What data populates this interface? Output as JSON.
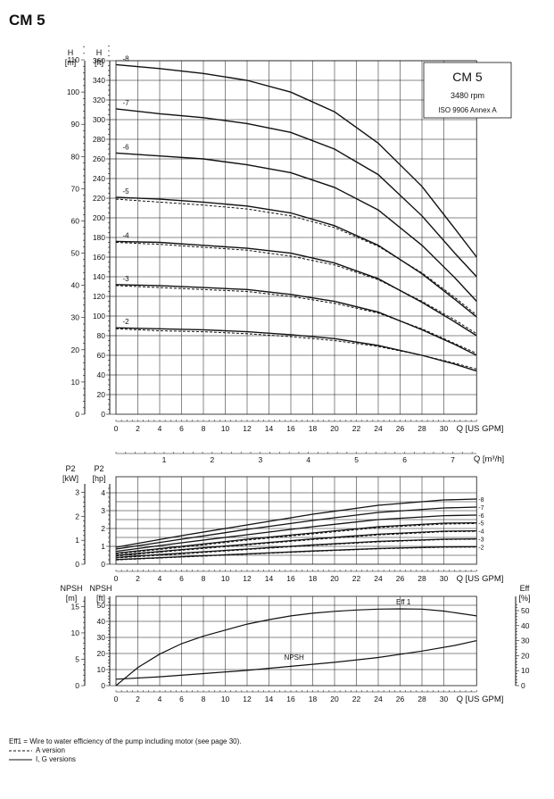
{
  "title": "CM 5",
  "info_box": {
    "model": "CM 5",
    "speed": "3480 rpm",
    "standard": "ISO 9906 Annex A"
  },
  "footnotes": {
    "eff_note": "Eff1 = Wire to water efficiency of the pump including motor (see page 30).",
    "a_version": "A version",
    "ig_versions": "I, G versions"
  },
  "chart_data": [
    {
      "id": "head",
      "type": "line",
      "title": "CM 5 head curves",
      "xlabel": "Q [US GPM]",
      "xlabel2": "Q [m³/h]",
      "ylabel_left": "H\n[m]",
      "ylabel_right": "H\n[ft]",
      "xlim": [
        0,
        33
      ],
      "ylim": [
        0,
        380
      ],
      "x_ticks": [
        0,
        2,
        4,
        6,
        8,
        10,
        12,
        14,
        16,
        18,
        20,
        22,
        24,
        26,
        28,
        30
      ],
      "y_ticks_ft": [
        0,
        20,
        40,
        60,
        80,
        100,
        120,
        140,
        160,
        180,
        200,
        220,
        240,
        260,
        280,
        300,
        320,
        340,
        360
      ],
      "y_ticks_m": [
        0,
        10,
        20,
        30,
        40,
        50,
        60,
        70,
        80,
        90,
        100,
        110
      ],
      "m3h_ticks": [
        1,
        2,
        3,
        4,
        5,
        6,
        7
      ],
      "series": [
        {
          "name": "-8",
          "solid": [
            [
              0,
              356
            ],
            [
              4,
              352
            ],
            [
              8,
              347
            ],
            [
              12,
              340
            ],
            [
              16,
              328
            ],
            [
              20,
              308
            ],
            [
              24,
              276
            ],
            [
              28,
              232
            ],
            [
              31,
              189
            ],
            [
              33,
              160
            ]
          ],
          "dashed": null
        },
        {
          "name": "-7",
          "solid": [
            [
              0,
              311
            ],
            [
              4,
              306
            ],
            [
              8,
              302
            ],
            [
              12,
              296
            ],
            [
              16,
              287
            ],
            [
              20,
              270
            ],
            [
              24,
              244
            ],
            [
              28,
              202
            ],
            [
              31,
              164
            ],
            [
              33,
              140
            ]
          ],
          "dashed": null
        },
        {
          "name": "-6",
          "solid": [
            [
              0,
              266
            ],
            [
              4,
              263
            ],
            [
              8,
              260
            ],
            [
              12,
              254
            ],
            [
              16,
              246
            ],
            [
              20,
              231
            ],
            [
              24,
              208
            ],
            [
              28,
              172
            ],
            [
              31,
              139
            ],
            [
              33,
              115
            ]
          ],
          "dashed": null
        },
        {
          "name": "-5",
          "solid": [
            [
              0,
              221
            ],
            [
              4,
              219
            ],
            [
              8,
              216
            ],
            [
              12,
              212
            ],
            [
              16,
              205
            ],
            [
              20,
              192
            ],
            [
              24,
              172
            ],
            [
              28,
              143
            ],
            [
              31,
              117
            ],
            [
              33,
              99
            ]
          ],
          "dashed": [
            [
              0,
              219
            ],
            [
              4,
              216
            ],
            [
              8,
              213
            ],
            [
              12,
              209
            ],
            [
              16,
              202
            ],
            [
              20,
              190
            ],
            [
              24,
              171
            ],
            [
              28,
              144
            ],
            [
              31,
              119
            ],
            [
              33,
              101
            ]
          ]
        },
        {
          "name": "-4",
          "solid": [
            [
              0,
              176
            ],
            [
              4,
              175
            ],
            [
              8,
              172
            ],
            [
              12,
              169
            ],
            [
              16,
              164
            ],
            [
              20,
              154
            ],
            [
              24,
              138
            ],
            [
              28,
              114
            ],
            [
              31,
              94
            ],
            [
              33,
              80
            ]
          ],
          "dashed": [
            [
              0,
              175
            ],
            [
              4,
              173
            ],
            [
              8,
              170
            ],
            [
              12,
              167
            ],
            [
              16,
              161
            ],
            [
              20,
              152
            ],
            [
              24,
              137
            ],
            [
              28,
              115
            ],
            [
              31,
              96
            ],
            [
              33,
              82
            ]
          ]
        },
        {
          "name": "-3",
          "solid": [
            [
              0,
              132
            ],
            [
              4,
              131
            ],
            [
              8,
              129
            ],
            [
              12,
              127
            ],
            [
              16,
              122
            ],
            [
              20,
              115
            ],
            [
              24,
              104
            ],
            [
              28,
              86
            ],
            [
              31,
              71
            ],
            [
              33,
              60
            ]
          ],
          "dashed": [
            [
              0,
              131
            ],
            [
              4,
              129
            ],
            [
              8,
              127
            ],
            [
              12,
              125
            ],
            [
              16,
              120
            ],
            [
              20,
              113
            ],
            [
              24,
              103
            ],
            [
              28,
              87
            ],
            [
              31,
              72
            ],
            [
              33,
              62
            ]
          ]
        },
        {
          "name": "-2",
          "solid": [
            [
              0,
              88
            ],
            [
              4,
              87
            ],
            [
              8,
              86
            ],
            [
              12,
              84
            ],
            [
              16,
              81
            ],
            [
              20,
              77
            ],
            [
              24,
              70
            ],
            [
              28,
              60
            ],
            [
              31,
              51
            ],
            [
              33,
              44
            ]
          ],
          "dashed": [
            [
              0,
              87
            ],
            [
              4,
              85
            ],
            [
              8,
              84
            ],
            [
              12,
              82
            ],
            [
              16,
              79
            ],
            [
              20,
              75
            ],
            [
              24,
              69
            ],
            [
              28,
              60
            ],
            [
              31,
              52
            ],
            [
              33,
              46
            ]
          ]
        }
      ]
    },
    {
      "id": "power",
      "type": "line",
      "title": "Power P2",
      "xlabel": "Q [US GPM]",
      "ylabel_left": "P2\n[kW]",
      "ylabel_right": "P2\n[hp]",
      "xlim": [
        0,
        33
      ],
      "ylim_hp": [
        0,
        4.5
      ],
      "x_ticks": [
        0,
        2,
        4,
        6,
        8,
        10,
        12,
        14,
        16,
        18,
        20,
        22,
        24,
        26,
        28,
        30
      ],
      "y_ticks_hp": [
        0,
        1,
        2,
        3,
        4
      ],
      "y_ticks_kw": [
        0,
        1,
        2,
        3
      ],
      "series": [
        {
          "name": "-8",
          "solid": [
            [
              0,
              0.95
            ],
            [
              6,
              1.6
            ],
            [
              12,
              2.2
            ],
            [
              18,
              2.8
            ],
            [
              24,
              3.3
            ],
            [
              30,
              3.6
            ],
            [
              33,
              3.65
            ]
          ],
          "dashed": null
        },
        {
          "name": "-7",
          "solid": [
            [
              0,
              0.85
            ],
            [
              6,
              1.4
            ],
            [
              12,
              1.95
            ],
            [
              18,
              2.45
            ],
            [
              24,
              2.9
            ],
            [
              30,
              3.15
            ],
            [
              33,
              3.2
            ]
          ],
          "dashed": null
        },
        {
          "name": "-6",
          "solid": [
            [
              0,
              0.72
            ],
            [
              6,
              1.2
            ],
            [
              12,
              1.65
            ],
            [
              18,
              2.1
            ],
            [
              24,
              2.5
            ],
            [
              30,
              2.72
            ],
            [
              33,
              2.75
            ]
          ],
          "dashed": null
        },
        {
          "name": "-5",
          "solid": [
            [
              0,
              0.62
            ],
            [
              6,
              1.0
            ],
            [
              12,
              1.4
            ],
            [
              18,
              1.75
            ],
            [
              24,
              2.1
            ],
            [
              30,
              2.3
            ],
            [
              33,
              2.32
            ]
          ],
          "dashed": [
            [
              0,
              0.58
            ],
            [
              6,
              0.95
            ],
            [
              12,
              1.35
            ],
            [
              18,
              1.7
            ],
            [
              24,
              2.05
            ],
            [
              30,
              2.25
            ],
            [
              33,
              2.28
            ]
          ]
        },
        {
          "name": "-4",
          "solid": [
            [
              0,
              0.5
            ],
            [
              6,
              0.82
            ],
            [
              12,
              1.12
            ],
            [
              18,
              1.42
            ],
            [
              24,
              1.68
            ],
            [
              30,
              1.85
            ],
            [
              33,
              1.87
            ]
          ],
          "dashed": [
            [
              0,
              0.46
            ],
            [
              6,
              0.78
            ],
            [
              12,
              1.08
            ],
            [
              18,
              1.38
            ],
            [
              24,
              1.64
            ],
            [
              30,
              1.82
            ],
            [
              33,
              1.84
            ]
          ]
        },
        {
          "name": "-3",
          "solid": [
            [
              0,
              0.38
            ],
            [
              6,
              0.62
            ],
            [
              12,
              0.85
            ],
            [
              18,
              1.08
            ],
            [
              24,
              1.28
            ],
            [
              30,
              1.4
            ],
            [
              33,
              1.42
            ]
          ],
          "dashed": [
            [
              0,
              0.35
            ],
            [
              6,
              0.58
            ],
            [
              12,
              0.82
            ],
            [
              18,
              1.05
            ],
            [
              24,
              1.25
            ],
            [
              30,
              1.38
            ],
            [
              33,
              1.4
            ]
          ]
        },
        {
          "name": "-2",
          "solid": [
            [
              0,
              0.26
            ],
            [
              6,
              0.42
            ],
            [
              12,
              0.58
            ],
            [
              18,
              0.74
            ],
            [
              24,
              0.88
            ],
            [
              30,
              0.97
            ],
            [
              33,
              0.98
            ]
          ],
          "dashed": [
            [
              0,
              0.24
            ],
            [
              6,
              0.4
            ],
            [
              12,
              0.56
            ],
            [
              18,
              0.72
            ],
            [
              24,
              0.86
            ],
            [
              30,
              0.95
            ],
            [
              33,
              0.96
            ]
          ]
        }
      ]
    },
    {
      "id": "npsh_eff",
      "type": "line",
      "title": "NPSH and efficiency",
      "xlabel": "Q [US GPM]",
      "ylabel_left": "NPSH\n[m]",
      "ylabel_mid": "NPSH\n[ft]",
      "ylabel_right": "Eff\n[%]",
      "xlim": [
        0,
        33
      ],
      "ylim_ft": [
        0,
        55
      ],
      "x_ticks": [
        0,
        2,
        4,
        6,
        8,
        10,
        12,
        14,
        16,
        18,
        20,
        22,
        24,
        26,
        28,
        30
      ],
      "y_ticks_ft": [
        0,
        10,
        20,
        30,
        40,
        50
      ],
      "y_ticks_m": [
        0,
        5,
        10,
        15
      ],
      "y_ticks_eff": [
        0,
        10,
        20,
        30,
        40,
        50
      ],
      "series": [
        {
          "name": "NPSH",
          "points": [
            [
              0,
              4
            ],
            [
              4,
              5.5
            ],
            [
              8,
              7.5
            ],
            [
              12,
              9.5
            ],
            [
              16,
              12
            ],
            [
              20,
              14.5
            ],
            [
              24,
              17.5
            ],
            [
              28,
              21.5
            ],
            [
              31,
              25
            ],
            [
              33,
              28
            ]
          ]
        },
        {
          "name": "Eff 1",
          "points": [
            [
              0,
              0
            ],
            [
              2,
              12
            ],
            [
              4,
              21
            ],
            [
              6,
              28
            ],
            [
              8,
              33
            ],
            [
              10,
              37
            ],
            [
              12,
              41
            ],
            [
              14,
              44
            ],
            [
              16,
              46.5
            ],
            [
              18,
              48.3
            ],
            [
              20,
              49.5
            ],
            [
              22,
              50.4
            ],
            [
              24,
              51
            ],
            [
              26,
              51.2
            ],
            [
              28,
              51
            ],
            [
              30,
              49.7
            ],
            [
              33,
              46.5
            ]
          ]
        }
      ]
    }
  ]
}
